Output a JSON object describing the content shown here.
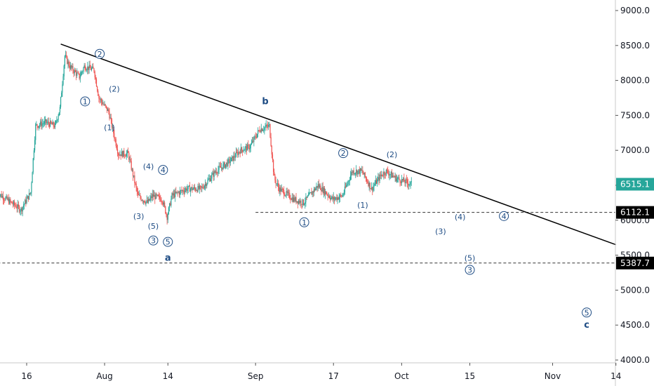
{
  "chart_data": {
    "type": "candlestick",
    "colors": {
      "up": "#26a69a",
      "down": "#ef5350",
      "trendline": "#000000",
      "level": "#333333",
      "label": "#1e4c84"
    },
    "x_range": [
      "2018-07-10",
      "2018-11-17"
    ],
    "y_range": [
      4000,
      9200
    ],
    "y_ticks": [
      "4000.0",
      "4500.0",
      "5000.0",
      "5500.0",
      "6000.0",
      "6500.0",
      "7000.0",
      "7500.0",
      "8000.0",
      "8500.0",
      "9000.0"
    ],
    "x_ticks": [
      {
        "date": "2018-07-16",
        "label": "16"
      },
      {
        "date": "2018-08-01",
        "label": "Aug"
      },
      {
        "date": "2018-08-14",
        "label": "14"
      },
      {
        "date": "2018-09-01",
        "label": "Sep"
      },
      {
        "date": "2018-09-17",
        "label": "17"
      },
      {
        "date": "2018-10-01",
        "label": "Oct"
      },
      {
        "date": "2018-10-15",
        "label": "15"
      },
      {
        "date": "2018-11-01",
        "label": "Nov"
      },
      {
        "date": "2018-11-14",
        "label": "14"
      }
    ],
    "price_path": [
      [
        "2018-07-10",
        6400
      ],
      [
        "2018-07-13",
        6250
      ],
      [
        "2018-07-15",
        6150
      ],
      [
        "2018-07-17",
        6400
      ],
      [
        "2018-07-18",
        7350
      ],
      [
        "2018-07-20",
        7400
      ],
      [
        "2018-07-22",
        7350
      ],
      [
        "2018-07-23",
        7600
      ],
      [
        "2018-07-24",
        8350
      ],
      [
        "2018-07-25",
        8200
      ],
      [
        "2018-07-27",
        8050
      ],
      [
        "2018-07-28",
        8200
      ],
      [
        "2018-07-30",
        8150
      ],
      [
        "2018-07-31",
        7750
      ],
      [
        "2018-08-02",
        7550
      ],
      [
        "2018-08-04",
        6950
      ],
      [
        "2018-08-06",
        6950
      ],
      [
        "2018-08-08",
        6350
      ],
      [
        "2018-08-10",
        6250
      ],
      [
        "2018-08-11",
        6350
      ],
      [
        "2018-08-13",
        6300
      ],
      [
        "2018-08-14",
        6050
      ],
      [
        "2018-08-15",
        6350
      ],
      [
        "2018-08-18",
        6450
      ],
      [
        "2018-08-21",
        6450
      ],
      [
        "2018-08-24",
        6700
      ],
      [
        "2018-08-27",
        6850
      ],
      [
        "2018-08-29",
        7000
      ],
      [
        "2018-08-31",
        7050
      ],
      [
        "2018-09-02",
        7300
      ],
      [
        "2018-09-04",
        7350
      ],
      [
        "2018-09-05",
        6600
      ],
      [
        "2018-09-06",
        6450
      ],
      [
        "2018-09-09",
        6300
      ],
      [
        "2018-09-11",
        6250
      ],
      [
        "2018-09-14",
        6500
      ],
      [
        "2018-09-17",
        6300
      ],
      [
        "2018-09-19",
        6350
      ],
      [
        "2018-09-21",
        6700
      ],
      [
        "2018-09-23",
        6700
      ],
      [
        "2018-09-25",
        6450
      ],
      [
        "2018-09-27",
        6650
      ],
      [
        "2018-09-28",
        6700
      ],
      [
        "2018-09-30",
        6600
      ],
      [
        "2018-10-03",
        6520
      ]
    ],
    "trendline": {
      "from": [
        "2018-07-23",
        8520
      ],
      "to": [
        "2018-11-14",
        5650
      ]
    },
    "levels": [
      {
        "value": 6112.1,
        "label": "6112.1",
        "from": "2018-09-01"
      },
      {
        "value": 5387.7,
        "label": "5387.7",
        "from": "2018-07-10"
      }
    ],
    "price_labels": [
      {
        "value": 6515.1,
        "label": "6515.1",
        "style": "current"
      },
      {
        "value": 6112.1,
        "label": "6112.1",
        "style": "level"
      },
      {
        "value": 5387.7,
        "label": "5387.7",
        "style": "level"
      }
    ],
    "wave_labels": [
      {
        "text": "1",
        "circled": true,
        "date": "2018-07-28",
        "price": 7700
      },
      {
        "text": "2",
        "circled": true,
        "date": "2018-07-31",
        "price": 8380
      },
      {
        "text": "(2)",
        "circled": false,
        "date": "2018-08-03",
        "price": 7880
      },
      {
        "text": "(1)",
        "circled": false,
        "date": "2018-08-02",
        "price": 7330
      },
      {
        "text": "(4)",
        "circled": false,
        "date": "2018-08-10",
        "price": 6770
      },
      {
        "text": "4",
        "circled": true,
        "date": "2018-08-13",
        "price": 6720
      },
      {
        "text": "(3)",
        "circled": false,
        "date": "2018-08-08",
        "price": 6060
      },
      {
        "text": "(5)",
        "circled": false,
        "date": "2018-08-11",
        "price": 5920
      },
      {
        "text": "3",
        "circled": true,
        "date": "2018-08-11",
        "price": 5710
      },
      {
        "text": "5",
        "circled": true,
        "date": "2018-08-14",
        "price": 5690
      },
      {
        "text": "a",
        "circled": false,
        "bold": true,
        "date": "2018-08-14",
        "price": 5460
      },
      {
        "text": "b",
        "circled": false,
        "bold": true,
        "date": "2018-09-03",
        "price": 7700
      },
      {
        "text": "1",
        "circled": true,
        "date": "2018-09-11",
        "price": 5970
      },
      {
        "text": "2",
        "circled": true,
        "date": "2018-09-19",
        "price": 6960
      },
      {
        "text": "(1)",
        "circled": false,
        "date": "2018-09-23",
        "price": 6220
      },
      {
        "text": "(2)",
        "circled": false,
        "date": "2018-09-29",
        "price": 6940
      },
      {
        "text": "(4)",
        "circled": false,
        "date": "2018-10-13",
        "price": 6050
      },
      {
        "text": "(3)",
        "circled": false,
        "date": "2018-10-09",
        "price": 5840
      },
      {
        "text": "4",
        "circled": true,
        "date": "2018-10-22",
        "price": 6060
      },
      {
        "text": "(5)",
        "circled": false,
        "date": "2018-10-15",
        "price": 5460
      },
      {
        "text": "3",
        "circled": true,
        "date": "2018-10-15",
        "price": 5290
      },
      {
        "text": "5",
        "circled": true,
        "date": "2018-11-08",
        "price": 4680
      },
      {
        "text": "c",
        "circled": false,
        "bold": true,
        "date": "2018-11-08",
        "price": 4500
      }
    ]
  }
}
